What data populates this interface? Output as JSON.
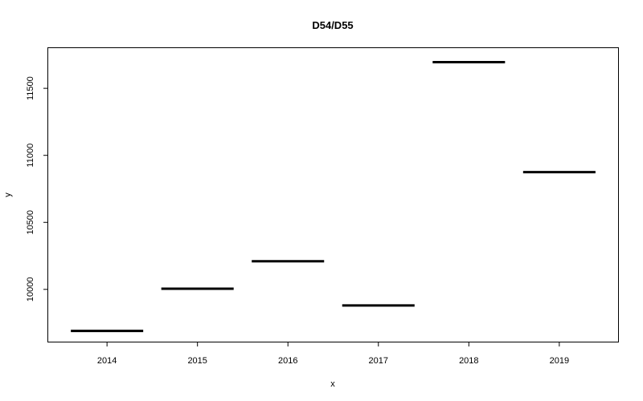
{
  "chart_data": {
    "type": "line",
    "title": "D54/D55",
    "xlabel": "x",
    "ylabel": "y",
    "categories": [
      "2014",
      "2015",
      "2016",
      "2017",
      "2018",
      "2019"
    ],
    "values": [
      9690,
      10005,
      10210,
      9880,
      11695,
      10875
    ],
    "ylim": [
      9610,
      11800
    ],
    "y_ticks": [
      "10000",
      "10500",
      "11000",
      "11500"
    ],
    "grid": false,
    "legend": "none"
  }
}
